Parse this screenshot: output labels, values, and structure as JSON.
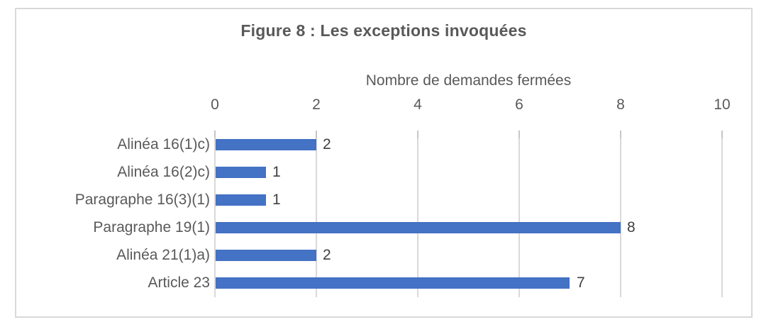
{
  "figure": {
    "title": "Figure 8 : Les exceptions invoquées",
    "axis_title": "Nombre de demandes fermées"
  },
  "chart_data": {
    "type": "bar",
    "orientation": "horizontal",
    "title": "Figure 8 : Les exceptions invoquées",
    "xlabel": "Nombre de demandes fermées",
    "ylabel": "",
    "categories": [
      "Alinéa 16(1)c)",
      "Alinéa 16(2)c)",
      "Paragraphe 16(3)(1)",
      "Paragraphe 19(1)",
      "Alinéa 21(1)a)",
      "Article 23"
    ],
    "values": [
      2,
      1,
      1,
      8,
      2,
      7
    ],
    "data_labels": [
      2,
      1,
      1,
      8,
      2,
      7
    ],
    "xlim": [
      0,
      10
    ],
    "xticks": [
      0,
      2,
      4,
      6,
      8,
      10
    ],
    "grid": true,
    "axis_position": "top",
    "legend": "none",
    "colors": {
      "bar": "#4472C4",
      "gridline": "#D9D9D9",
      "tick_mark": "#C6C6C6",
      "border": "#D9D9D9",
      "title_text": "#595959",
      "axis_text": "#595959",
      "data_label_text": "#404040",
      "background": "#FFFFFF"
    }
  }
}
